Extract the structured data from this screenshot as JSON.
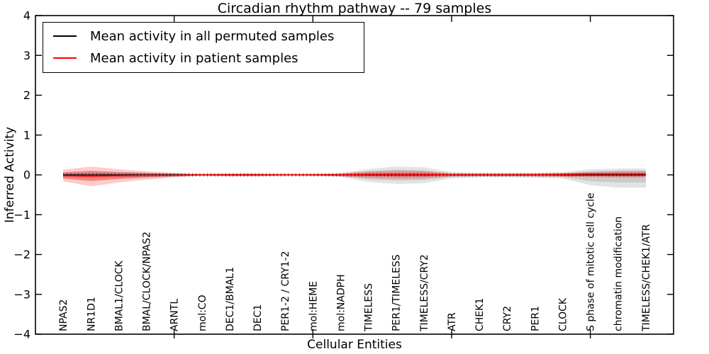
{
  "chart_data": {
    "type": "line",
    "title": "Circadian rhythm pathway -- 79 samples",
    "xlabel": "Cellular Entities",
    "ylabel": "Inferred Activity",
    "ylim": [
      -4,
      4
    ],
    "yticks": [
      -4,
      -3,
      -2,
      -1,
      0,
      1,
      2,
      3,
      4
    ],
    "xtick_positions": [
      4,
      9,
      14,
      19
    ],
    "grid": false,
    "legend_position": "upper left",
    "categories": [
      "NPAS2",
      "NR1D1",
      "BMAL1/CLOCK",
      "BMAL/CLOCK/NPAS2",
      "ARNTL",
      "mol:CO",
      "DEC1/BMAL1",
      "DEC1",
      "PER1-2 / CRY1-2",
      "mol:HEME",
      "mol:NADPH",
      "TIMELESS",
      "PER1/TIMELESS",
      "TIMELESS/CRY2",
      "ATR",
      "CHEK1",
      "CRY2",
      "PER1",
      "CLOCK",
      "S phase of mitotic cell cycle",
      "chromatin modification",
      "TIMELESS/CHEK1/ATR"
    ],
    "series": [
      {
        "name": "Mean activity in all permuted samples",
        "color": "#000000",
        "values": [
          0,
          0,
          0,
          0,
          0,
          0,
          0,
          0,
          0,
          0,
          0,
          0,
          0,
          0,
          0,
          0,
          0,
          0,
          0,
          0,
          0,
          0
        ]
      },
      {
        "name": "Mean activity in patient samples",
        "color": "#ff0000",
        "values": [
          -0.02,
          -0.03,
          -0.02,
          -0.01,
          -0.01,
          0,
          0,
          0,
          0,
          0,
          0,
          0.01,
          0.01,
          0.01,
          0,
          0,
          0,
          0,
          0.01,
          0.02,
          0.02,
          0.02
        ]
      }
    ],
    "bands": [
      {
        "name": "permuted-std-outer",
        "color": "#000000",
        "opacity": 0.11,
        "hi": [
          0.06,
          0.1,
          0.08,
          0.06,
          0.04,
          0.02,
          0.03,
          0.03,
          0.01,
          0.02,
          0.04,
          0.15,
          0.21,
          0.19,
          0.07,
          0.05,
          0.05,
          0.05,
          0.07,
          0.14,
          0.16,
          0.16
        ],
        "lo": [
          -0.1,
          -0.14,
          -0.11,
          -0.08,
          -0.05,
          -0.02,
          -0.03,
          -0.03,
          -0.01,
          -0.02,
          -0.05,
          -0.18,
          -0.23,
          -0.21,
          -0.09,
          -0.06,
          -0.06,
          -0.07,
          -0.09,
          -0.26,
          -0.32,
          -0.32
        ]
      },
      {
        "name": "permuted-std-inner",
        "color": "#000000",
        "opacity": 0.11,
        "hi": [
          0.04,
          0.06,
          0.05,
          0.04,
          0.02,
          0.01,
          0.02,
          0.02,
          0.01,
          0.01,
          0.02,
          0.09,
          0.13,
          0.11,
          0.04,
          0.03,
          0.03,
          0.03,
          0.04,
          0.08,
          0.1,
          0.1
        ],
        "lo": [
          -0.06,
          -0.08,
          -0.07,
          -0.05,
          -0.03,
          -0.01,
          -0.02,
          -0.02,
          -0.01,
          -0.01,
          -0.03,
          -0.11,
          -0.14,
          -0.13,
          -0.05,
          -0.04,
          -0.04,
          -0.04,
          -0.05,
          -0.16,
          -0.19,
          -0.19
        ]
      },
      {
        "name": "patient-std-outer",
        "color": "#ff0000",
        "opacity": 0.2,
        "hi": [
          0.13,
          0.21,
          0.14,
          0.09,
          0.05,
          0.02,
          0.03,
          0.03,
          0.01,
          0.02,
          0.04,
          0.09,
          0.11,
          0.1,
          0.04,
          0.03,
          0.03,
          0.04,
          0.05,
          0.08,
          0.1,
          0.1
        ],
        "lo": [
          -0.16,
          -0.29,
          -0.19,
          -0.12,
          -0.06,
          -0.02,
          -0.04,
          -0.04,
          -0.01,
          -0.02,
          -0.04,
          -0.08,
          -0.1,
          -0.09,
          -0.04,
          -0.03,
          -0.03,
          -0.04,
          -0.05,
          -0.06,
          -0.07,
          -0.07
        ]
      },
      {
        "name": "patient-std-inner",
        "color": "#ff0000",
        "opacity": 0.26,
        "hi": [
          0.07,
          0.1,
          0.07,
          0.05,
          0.03,
          0.01,
          0.02,
          0.02,
          0.01,
          0.01,
          0.02,
          0.05,
          0.06,
          0.06,
          0.02,
          0.02,
          0.02,
          0.02,
          0.03,
          0.05,
          0.06,
          0.06
        ],
        "lo": [
          -0.09,
          -0.16,
          -0.1,
          -0.06,
          -0.03,
          -0.01,
          -0.02,
          -0.02,
          -0.01,
          -0.01,
          -0.02,
          -0.04,
          -0.05,
          -0.05,
          -0.02,
          -0.02,
          -0.02,
          -0.02,
          -0.03,
          -0.03,
          -0.04,
          -0.04
        ]
      }
    ]
  },
  "colors": {
    "axis": "#000000",
    "background": "#ffffff",
    "permuted_line": "#000000",
    "patient_line": "#ff0000"
  }
}
